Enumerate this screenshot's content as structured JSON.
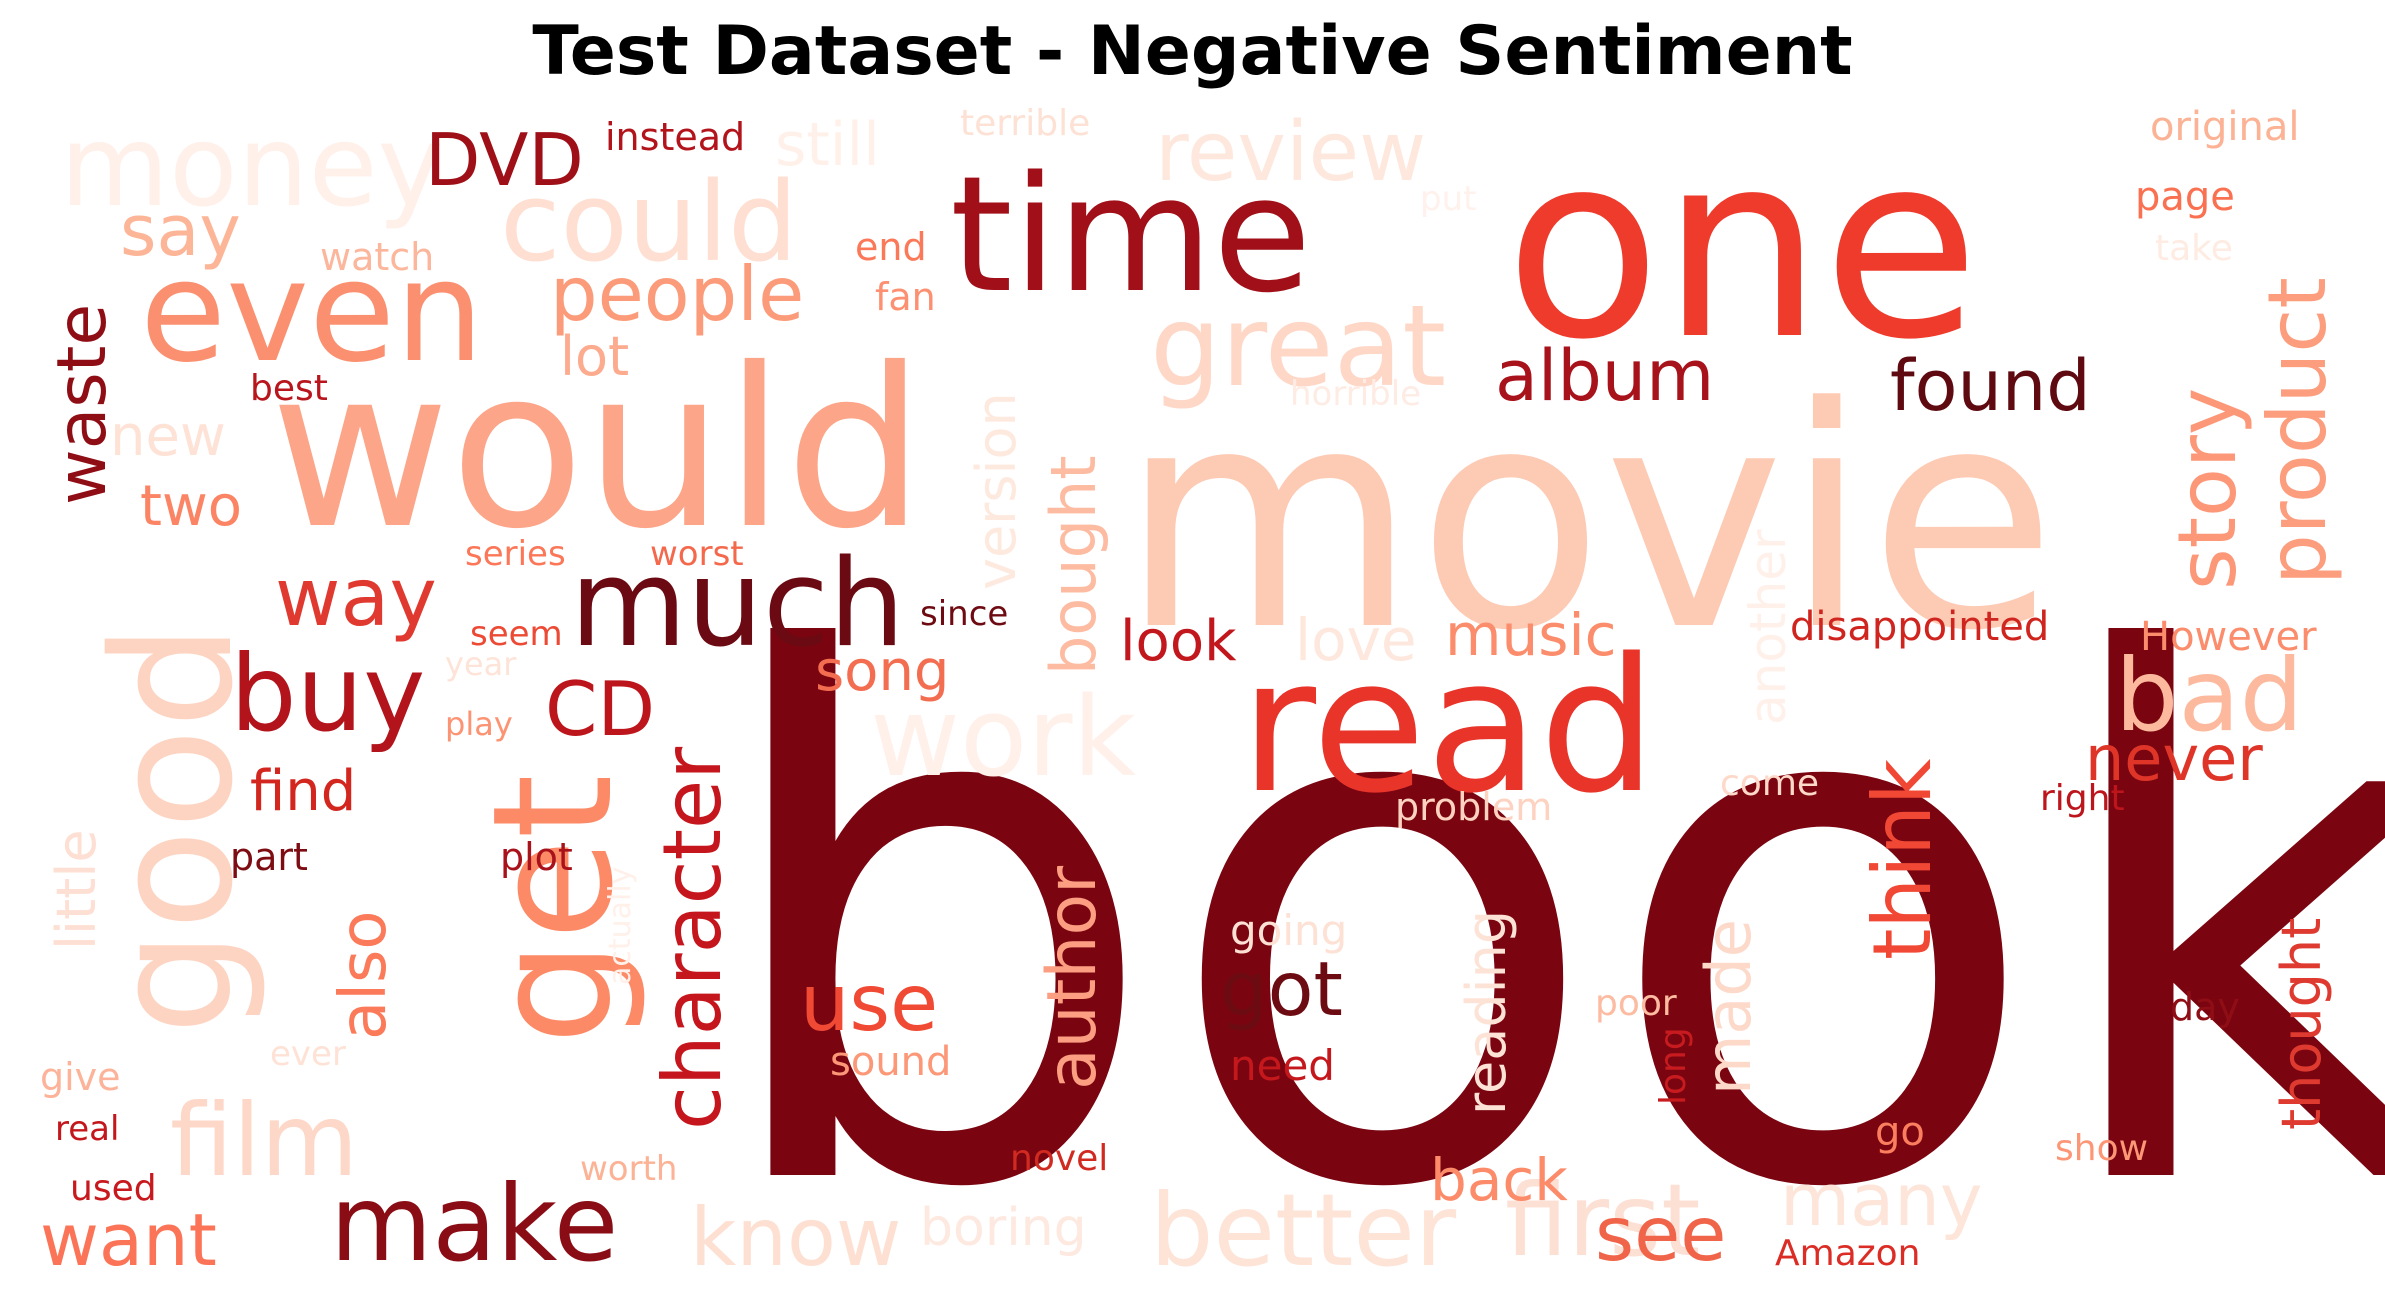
{
  "title": "Test Dataset - Negative Sentiment",
  "palette": [
    "#fee5d9",
    "#fcbba1",
    "#fc9272",
    "#fb6a4a",
    "#ef3b2c",
    "#cb181d",
    "#a50f15",
    "#67000d"
  ],
  "words": [
    {
      "text": "book",
      "color": "#7a0510"
    },
    {
      "text": "movie",
      "color": "#fdcab4"
    },
    {
      "text": "one",
      "color": "#ee3b2c"
    },
    {
      "text": "would",
      "color": "#fca588"
    },
    {
      "text": "time",
      "color": "#a10f18"
    },
    {
      "text": "get",
      "color": "#fc8a66"
    },
    {
      "text": "good",
      "color": "#fdd4c2"
    },
    {
      "text": "read",
      "color": "#e9342a"
    },
    {
      "text": "even",
      "color": "#fb9070"
    },
    {
      "text": "much",
      "color": "#6b0a12"
    },
    {
      "text": "could",
      "color": "#fedfd2"
    },
    {
      "text": "great",
      "color": "#fed7c7"
    },
    {
      "text": "money",
      "color": "#fff0e9"
    },
    {
      "text": "make",
      "color": "#8a0d16"
    },
    {
      "text": "better",
      "color": "#fee3d7"
    },
    {
      "text": "first",
      "color": "#fde0d4"
    },
    {
      "text": "film",
      "color": "#fdd8c8"
    },
    {
      "text": "buy",
      "color": "#b3141c"
    },
    {
      "text": "work",
      "color": "#fff0ea"
    },
    {
      "text": "bad",
      "color": "#fcb99e"
    },
    {
      "text": "people",
      "color": "#fb9b7a"
    },
    {
      "text": "review",
      "color": "#fee8de"
    },
    {
      "text": "character",
      "color": "#c4161c"
    },
    {
      "text": "story",
      "color": "#fc9878"
    },
    {
      "text": "product",
      "color": "#fc9d7e"
    },
    {
      "text": "way",
      "color": "#e03a30"
    },
    {
      "text": "think",
      "color": "#f04834"
    },
    {
      "text": "found",
      "color": "#5e0a10"
    },
    {
      "text": "album",
      "color": "#a8121b"
    },
    {
      "text": "use",
      "color": "#f04a35"
    },
    {
      "text": "got",
      "color": "#6d0b12"
    },
    {
      "text": "author",
      "color": "#fc9e82"
    },
    {
      "text": "know",
      "color": "#fee0d2"
    },
    {
      "text": "many",
      "color": "#fde5da"
    },
    {
      "text": "see",
      "color": "#f06449"
    },
    {
      "text": "want",
      "color": "#fb7457"
    },
    {
      "text": "CD",
      "color": "#bd151c"
    },
    {
      "text": "DVD",
      "color": "#9e0f17"
    },
    {
      "text": "say",
      "color": "#fdb598"
    },
    {
      "text": "waste",
      "color": "#8f0e15"
    },
    {
      "text": "bought",
      "color": "#fdbca2"
    },
    {
      "text": "version",
      "color": "#fee9df"
    },
    {
      "text": "also",
      "color": "#fb7a5a"
    },
    {
      "text": "still",
      "color": "#fff1ea"
    },
    {
      "text": "music",
      "color": "#fc8d6c"
    },
    {
      "text": "look",
      "color": "#c2171d"
    },
    {
      "text": "love",
      "color": "#fee7dd"
    },
    {
      "text": "song",
      "color": "#f36d50"
    },
    {
      "text": "never",
      "color": "#df3528"
    },
    {
      "text": "made",
      "color": "#fdd9ca"
    },
    {
      "text": "reading",
      "color": "#fde2d6"
    },
    {
      "text": "back",
      "color": "#fc8b6a"
    },
    {
      "text": "thought",
      "color": "#de3a2f"
    },
    {
      "text": "find",
      "color": "#d2261f"
    },
    {
      "text": "lot",
      "color": "#fcab8f"
    },
    {
      "text": "two",
      "color": "#fb8464"
    },
    {
      "text": "new",
      "color": "#fee2d6"
    },
    {
      "text": "little",
      "color": "#fedfd3"
    },
    {
      "text": "another",
      "color": "#fff0ea"
    },
    {
      "text": "boring",
      "color": "#fee9e0"
    },
    {
      "text": "disappointed",
      "color": "#d0251f"
    },
    {
      "text": "However",
      "color": "#fb8c6c"
    },
    {
      "text": "original",
      "color": "#fcb294"
    },
    {
      "text": "page",
      "color": "#fa7151"
    },
    {
      "text": "take",
      "color": "#feebe2"
    },
    {
      "text": "instead",
      "color": "#b3141c"
    },
    {
      "text": "terrible",
      "color": "#fde1d4"
    },
    {
      "text": "put",
      "color": "#fff1eb"
    },
    {
      "text": "watch",
      "color": "#fcb69c"
    },
    {
      "text": "end",
      "color": "#fb7859"
    },
    {
      "text": "fan",
      "color": "#fc9070"
    },
    {
      "text": "best",
      "color": "#b8151c"
    },
    {
      "text": "horrible",
      "color": "#feece4"
    },
    {
      "text": "series",
      "color": "#fb7758"
    },
    {
      "text": "worst",
      "color": "#f4684b"
    },
    {
      "text": "seem",
      "color": "#ec4a34"
    },
    {
      "text": "year",
      "color": "#fee4d8"
    },
    {
      "text": "since",
      "color": "#6e0b12"
    },
    {
      "text": "play",
      "color": "#fc9474"
    },
    {
      "text": "problem",
      "color": "#fdd2c0"
    },
    {
      "text": "come",
      "color": "#fed9ca"
    },
    {
      "text": "right",
      "color": "#bd151c"
    },
    {
      "text": "part",
      "color": "#7e0d13"
    },
    {
      "text": "plot",
      "color": "#a9121b"
    },
    {
      "text": "actually",
      "color": "#fff0e9"
    },
    {
      "text": "going",
      "color": "#fee1d5"
    },
    {
      "text": "poor",
      "color": "#fdbba1"
    },
    {
      "text": "long",
      "color": "#c71b1f"
    },
    {
      "text": "day",
      "color": "#8f0e15"
    },
    {
      "text": "give",
      "color": "#fcb399"
    },
    {
      "text": "ever",
      "color": "#fee2d6"
    },
    {
      "text": "real",
      "color": "#c3171d"
    },
    {
      "text": "sound",
      "color": "#fc9878"
    },
    {
      "text": "need",
      "color": "#c5181d"
    },
    {
      "text": "go",
      "color": "#fb7e5e"
    },
    {
      "text": "show",
      "color": "#fc9676"
    },
    {
      "text": "used",
      "color": "#c8191e"
    },
    {
      "text": "worth",
      "color": "#fcb294"
    },
    {
      "text": "novel",
      "color": "#d02a21"
    },
    {
      "text": "Amazon",
      "color": "#db2d26"
    }
  ]
}
